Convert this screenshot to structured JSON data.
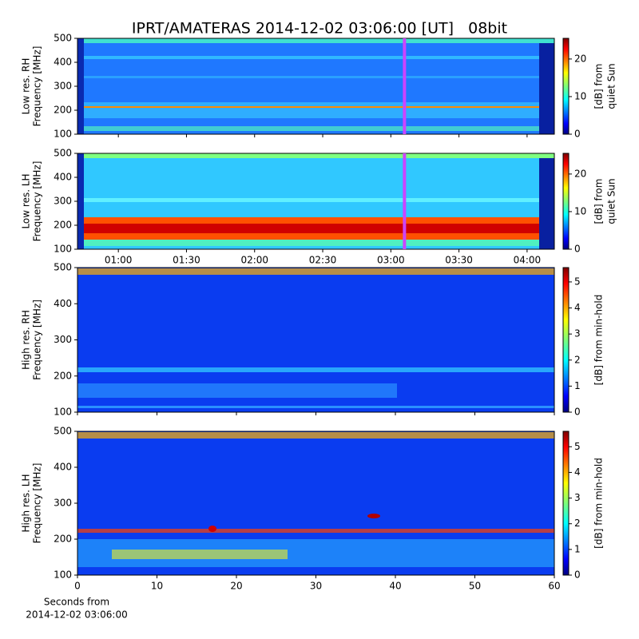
{
  "chart_data": [
    {
      "type": "heatmap",
      "title": "IPRT/AMATERAS 2014-12-02 03:06:00 [UT]   08bit",
      "ylabel": [
        "Low res. RH",
        "Frequency [MHz]"
      ],
      "ylim": [
        100,
        500
      ],
      "yticks": [
        100,
        200,
        300,
        400,
        500
      ],
      "xlim": [
        "00:42",
        "04:12"
      ],
      "marker": "03:06",
      "marker_color": "#cc44ff",
      "colorbar_label": [
        "[dB] from",
        "quiet Sun"
      ],
      "clim": [
        0,
        25.5
      ],
      "cticks": [
        0,
        10,
        20
      ]
    },
    {
      "type": "heatmap",
      "ylabel": [
        "Low res. LH",
        "Frequency [MHz]"
      ],
      "ylim": [
        100,
        500
      ],
      "yticks": [
        100,
        200,
        300,
        400,
        500
      ],
      "xlim": [
        "00:42",
        "04:12"
      ],
      "xticks": [
        "01:00",
        "01:30",
        "02:00",
        "02:30",
        "03:00",
        "03:30",
        "04:00"
      ],
      "marker": "03:06",
      "marker_color": "#cc44ff",
      "colorbar_label": [
        "[dB] from",
        "quiet Sun"
      ],
      "clim": [
        0,
        25.5
      ],
      "cticks": [
        0,
        10,
        20
      ]
    },
    {
      "type": "heatmap",
      "ylabel": [
        "High res. RH",
        "Frequency [MHz]"
      ],
      "ylim": [
        100,
        500
      ],
      "yticks": [
        100,
        200,
        300,
        400,
        500
      ],
      "xlim": [
        0,
        60
      ],
      "colorbar_label": [
        "[dB] from min-hold"
      ],
      "clim": [
        0,
        5.55
      ],
      "cticks": [
        0,
        1,
        2,
        3,
        4,
        5
      ]
    },
    {
      "type": "heatmap",
      "ylabel": [
        "High res. LH",
        "Frequency [MHz]"
      ],
      "ylim": [
        100,
        500
      ],
      "yticks": [
        100,
        200,
        300,
        400,
        500
      ],
      "xlim": [
        0,
        60
      ],
      "xticks": [
        0,
        10,
        20,
        30,
        40,
        50,
        60
      ],
      "xlabel": [
        "Seconds from",
        "2014-12-02 03:06:00"
      ],
      "colorbar_label": [
        "[dB] from min-hold"
      ],
      "clim": [
        0,
        5.6
      ],
      "cticks": [
        0,
        1,
        2,
        3,
        4,
        5
      ]
    }
  ]
}
